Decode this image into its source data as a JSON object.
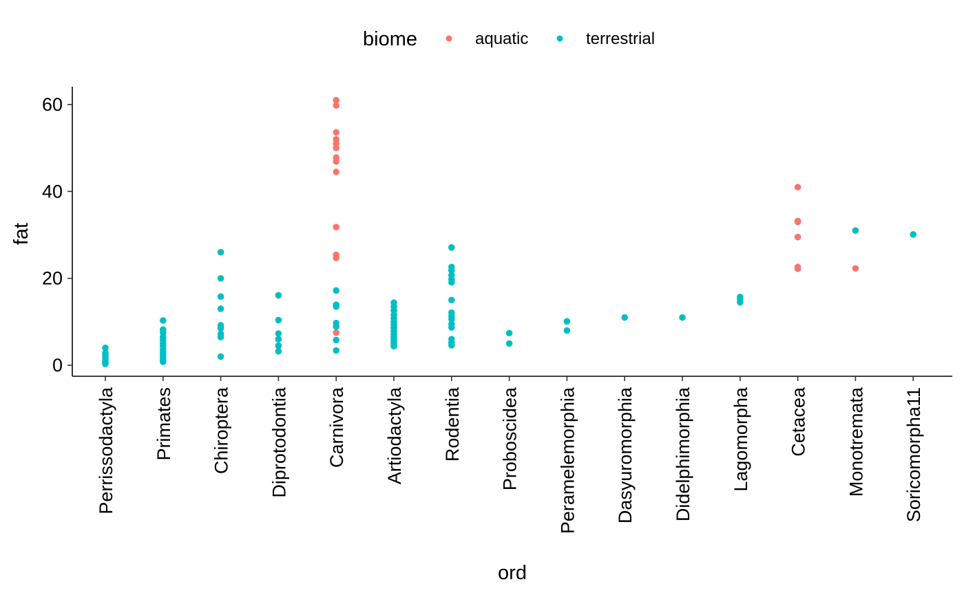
{
  "chart_data": {
    "type": "scatter",
    "title": "",
    "xlabel": "ord",
    "ylabel": "fat",
    "ylim": [
      -2.5,
      64
    ],
    "y_ticks": [
      0,
      20,
      40,
      60
    ],
    "grid": false,
    "legend": {
      "title": "biome",
      "position": "top",
      "entries": [
        {
          "label": "aquatic",
          "color": "#F8766D"
        },
        {
          "label": "terrestrial",
          "color": "#00BFC4"
        }
      ]
    },
    "categories": [
      "Perrissodactyla",
      "Primates",
      "Chiroptera",
      "Diprotodontia",
      "Carnivora",
      "Artiodactyla",
      "Rodentia",
      "Proboscidea",
      "Peramelemorphia",
      "Dasyuromorphia",
      "Didelphimorphia",
      "Lagomorpha",
      "Cetacea",
      "Monotremata",
      "Soricomorpha11"
    ],
    "series": [
      {
        "name": "aquatic",
        "color": "#F8766D",
        "points": [
          {
            "x": "Carnivora",
            "y": [
              61.0,
              59.8,
              53.6,
              52.0,
              51.0,
              50.0,
              47.8,
              46.9,
              44.5,
              31.8,
              25.4,
              24.7,
              7.5
            ]
          },
          {
            "x": "Cetacea",
            "y": [
              41.0,
              33.2,
              33.0,
              29.5,
              22.6,
              22.2
            ]
          },
          {
            "x": "Monotremata",
            "y": [
              22.3
            ]
          }
        ]
      },
      {
        "name": "terrestrial",
        "color": "#00BFC4",
        "points": [
          {
            "x": "Perrissodactyla",
            "y": [
              4.0,
              2.8,
              2.2,
              1.8,
              1.2,
              0.6,
              0.3
            ]
          },
          {
            "x": "Primates",
            "y": [
              10.3,
              8.2,
              7.5,
              6.5,
              5.8,
              5.0,
              4.4,
              3.6,
              3.0,
              2.4,
              1.8,
              1.2,
              0.8
            ]
          },
          {
            "x": "Chiroptera",
            "y": [
              26.0,
              20.0,
              15.8,
              13.0,
              9.2,
              8.5,
              7.2,
              6.5,
              2.0
            ]
          },
          {
            "x": "Diprotodontia",
            "y": [
              16.1,
              10.4,
              7.3,
              6.0,
              4.5,
              3.2
            ]
          },
          {
            "x": "Carnivora",
            "y": [
              17.2,
              13.9,
              13.5,
              9.7,
              8.9,
              5.8,
              3.4
            ]
          },
          {
            "x": "Artiodactyla",
            "y": [
              14.4,
              13.5,
              12.6,
              11.6,
              10.8,
              10.0,
              9.3,
              8.6,
              7.9,
              7.2,
              6.6,
              6.0,
              5.4,
              4.9,
              4.4
            ]
          },
          {
            "x": "Rodentia",
            "y": [
              27.1,
              22.6,
              21.8,
              20.7,
              19.8,
              19.1,
              15.0,
              12.1,
              11.3,
              10.6,
              9.5,
              8.7,
              6.0,
              5.2,
              4.6
            ]
          },
          {
            "x": "Proboscidea",
            "y": [
              7.4,
              5.0
            ]
          },
          {
            "x": "Peramelemorphia",
            "y": [
              10.1,
              8.0
            ]
          },
          {
            "x": "Dasyuromorphia",
            "y": [
              11.0
            ]
          },
          {
            "x": "Didelphimorphia",
            "y": [
              11.0
            ]
          },
          {
            "x": "Lagomorpha",
            "y": [
              15.7,
              15.2,
              14.5
            ]
          },
          {
            "x": "Monotremata",
            "y": [
              31.0
            ]
          },
          {
            "x": "Soricomorpha11",
            "y": [
              30.1
            ]
          }
        ]
      }
    ]
  }
}
